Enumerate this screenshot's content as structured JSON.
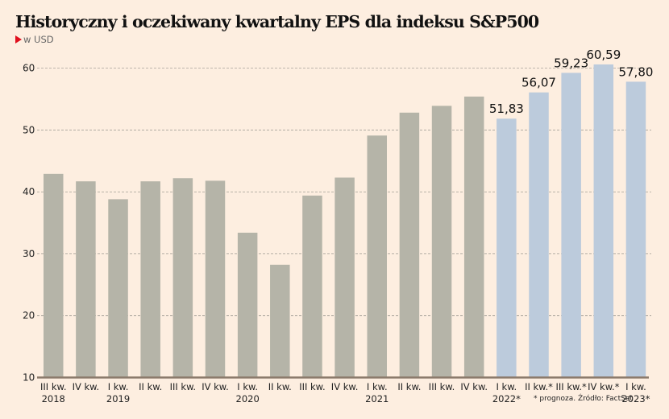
{
  "chart_data": {
    "type": "bar",
    "title": "Historyczny i oczekiwany kwartalny EPS dla indeksu S&P500",
    "subtitle": "w USD",
    "xlabel": "",
    "ylabel": "",
    "ylim": [
      10,
      60
    ],
    "yticks": [
      "10",
      "20",
      "30",
      "40",
      "50",
      "60"
    ],
    "grid": true,
    "categories": [
      {
        "line1": "III kw.",
        "line2": "2018"
      },
      {
        "line1": "IV kw.",
        "line2": ""
      },
      {
        "line1": "I kw.",
        "line2": "2019"
      },
      {
        "line1": "II kw.",
        "line2": ""
      },
      {
        "line1": "III kw.",
        "line2": ""
      },
      {
        "line1": "IV kw.",
        "line2": ""
      },
      {
        "line1": "I kw.",
        "line2": "2020"
      },
      {
        "line1": "II kw.",
        "line2": ""
      },
      {
        "line1": "III kw.",
        "line2": ""
      },
      {
        "line1": "IV kw.",
        "line2": ""
      },
      {
        "line1": "I kw.",
        "line2": "2021"
      },
      {
        "line1": "II kw.",
        "line2": ""
      },
      {
        "line1": "III kw.",
        "line2": ""
      },
      {
        "line1": "IV kw.",
        "line2": ""
      },
      {
        "line1": "I kw.",
        "line2": "2022*"
      },
      {
        "line1": "II kw.*",
        "line2": ""
      },
      {
        "line1": "III kw.*",
        "line2": ""
      },
      {
        "line1": "IV kw.*",
        "line2": ""
      },
      {
        "line1": "I kw.",
        "line2": "2023*"
      }
    ],
    "values": [
      42.9,
      41.7,
      38.8,
      41.7,
      42.2,
      41.8,
      33.4,
      28.2,
      39.4,
      42.3,
      49.1,
      52.8,
      53.9,
      55.4,
      51.83,
      56.07,
      59.23,
      60.59,
      57.8
    ],
    "data_labels": [
      "",
      "",
      "",
      "",
      "",
      "",
      "",
      "",
      "",
      "",
      "",
      "",
      "",
      "",
      "51,83",
      "56,07",
      "59,23",
      "60,59",
      "57,80"
    ],
    "forecast": [
      false,
      false,
      false,
      false,
      false,
      false,
      false,
      false,
      false,
      false,
      false,
      false,
      false,
      false,
      true,
      true,
      true,
      true,
      true
    ],
    "colors": {
      "historical": "#b5b4a8",
      "forecast": "#bccbdc",
      "background": "#fdeee0",
      "grid": "#a8a39a",
      "axis": "#8c7b6c",
      "accent": "#e0101e"
    },
    "footnote": "* prognoza. Źródło: FactSet"
  }
}
